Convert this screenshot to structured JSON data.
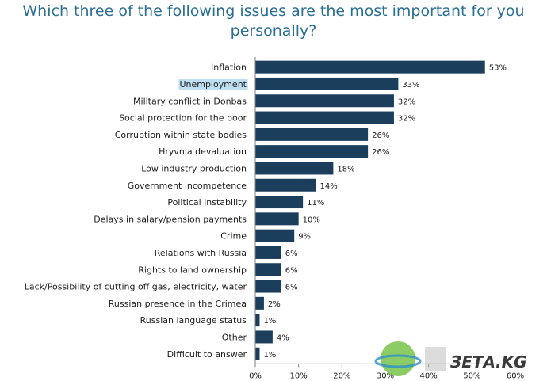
{
  "chart_data": {
    "type": "bar",
    "orientation": "horizontal",
    "title": "Which three of the following issues are the most important for you personally?",
    "categories": [
      "Inflation",
      "Unemployment",
      "Military conflict in Donbas",
      "Social protection for the poor",
      "Corruption within state bodies",
      "Hryvnia devaluation",
      "Low industry production",
      "Government incompetence",
      "Political instability",
      "Delays in salary/pension payments",
      "Crime",
      "Relations with Russia",
      "Rights to land ownership",
      "Lack/Possibility of cutting off gas, electricity, water",
      "Russian presence in the Crimea",
      "Russian language status",
      "Other",
      "Difficult to answer"
    ],
    "values": [
      53,
      33,
      32,
      32,
      26,
      26,
      18,
      14,
      11,
      10,
      9,
      6,
      6,
      6,
      2,
      1,
      4,
      1
    ],
    "value_labels": [
      "53%",
      "33%",
      "32%",
      "32%",
      "26%",
      "26%",
      "18%",
      "14%",
      "11%",
      "10%",
      "9%",
      "6%",
      "6%",
      "6%",
      "2%",
      "1%",
      "4%",
      "1%"
    ],
    "x_ticks": [
      "0%",
      "10%",
      "20%",
      "30%",
      "40%",
      "50%",
      "60%"
    ],
    "xlim": [
      0,
      60
    ],
    "grid": false,
    "bar_color": "#1b3e5c",
    "highlighted_category": "Unemployment",
    "highlight_color": "#bfe0f2"
  },
  "watermark": {
    "text": "ЗЕТА.KG"
  }
}
